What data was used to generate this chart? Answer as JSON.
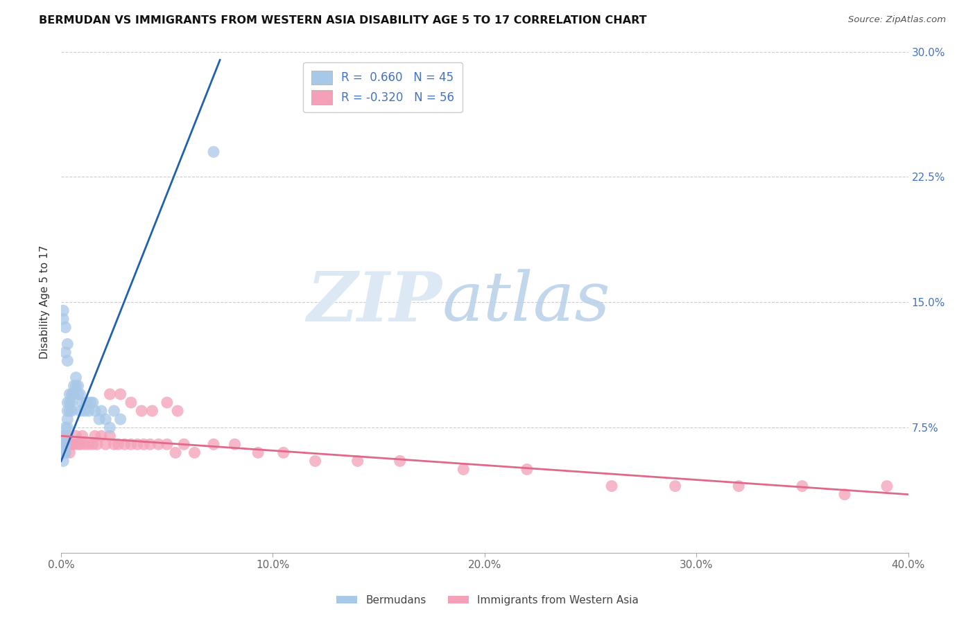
{
  "title": "BERMUDAN VS IMMIGRANTS FROM WESTERN ASIA DISABILITY AGE 5 TO 17 CORRELATION CHART",
  "source": "Source: ZipAtlas.com",
  "ylabel": "Disability Age 5 to 17",
  "xlim": [
    0.0,
    0.4
  ],
  "ylim": [
    0.0,
    0.3
  ],
  "xticks": [
    0.0,
    0.1,
    0.2,
    0.3,
    0.4
  ],
  "yticks": [
    0.0,
    0.075,
    0.15,
    0.225,
    0.3
  ],
  "xticklabels": [
    "0.0%",
    "10.0%",
    "20.0%",
    "30.0%",
    "40.0%"
  ],
  "yticklabels_right": [
    "",
    "7.5%",
    "15.0%",
    "22.5%",
    "30.0%"
  ],
  "blue_R": 0.66,
  "blue_N": 45,
  "pink_R": -0.32,
  "pink_N": 56,
  "blue_color": "#a8c8e8",
  "pink_color": "#f4a0b8",
  "trend_blue": "#2060b0",
  "trend_pink": "#e06888",
  "blue_x": [
    0.001,
    0.001,
    0.001,
    0.002,
    0.002,
    0.002,
    0.002,
    0.003,
    0.003,
    0.003,
    0.003,
    0.004,
    0.004,
    0.004,
    0.005,
    0.005,
    0.005,
    0.006,
    0.006,
    0.007,
    0.007,
    0.008,
    0.008,
    0.009,
    0.009,
    0.01,
    0.011,
    0.012,
    0.013,
    0.014,
    0.015,
    0.016,
    0.018,
    0.019,
    0.021,
    0.023,
    0.025,
    0.028,
    0.001,
    0.002,
    0.003,
    0.002,
    0.003,
    0.001,
    0.072
  ],
  "blue_y": [
    0.06,
    0.065,
    0.055,
    0.07,
    0.075,
    0.065,
    0.06,
    0.08,
    0.075,
    0.085,
    0.09,
    0.09,
    0.085,
    0.095,
    0.085,
    0.09,
    0.095,
    0.1,
    0.095,
    0.1,
    0.105,
    0.1,
    0.095,
    0.095,
    0.085,
    0.09,
    0.085,
    0.09,
    0.085,
    0.09,
    0.09,
    0.085,
    0.08,
    0.085,
    0.08,
    0.075,
    0.085,
    0.08,
    0.14,
    0.135,
    0.125,
    0.12,
    0.115,
    0.145,
    0.24
  ],
  "blue_trendline_x": [
    0.0,
    0.075
  ],
  "blue_trendline_y": [
    0.055,
    0.295
  ],
  "pink_x": [
    0.001,
    0.001,
    0.002,
    0.002,
    0.003,
    0.003,
    0.004,
    0.004,
    0.005,
    0.006,
    0.007,
    0.008,
    0.009,
    0.01,
    0.011,
    0.013,
    0.015,
    0.016,
    0.017,
    0.019,
    0.021,
    0.023,
    0.025,
    0.027,
    0.03,
    0.033,
    0.036,
    0.039,
    0.042,
    0.046,
    0.05,
    0.054,
    0.058,
    0.063,
    0.072,
    0.082,
    0.093,
    0.105,
    0.12,
    0.14,
    0.16,
    0.19,
    0.22,
    0.26,
    0.29,
    0.32,
    0.35,
    0.37,
    0.39,
    0.023,
    0.028,
    0.033,
    0.038,
    0.043,
    0.05,
    0.055
  ],
  "pink_y": [
    0.065,
    0.07,
    0.06,
    0.065,
    0.065,
    0.07,
    0.065,
    0.06,
    0.065,
    0.065,
    0.07,
    0.065,
    0.065,
    0.07,
    0.065,
    0.065,
    0.065,
    0.07,
    0.065,
    0.07,
    0.065,
    0.07,
    0.065,
    0.065,
    0.065,
    0.065,
    0.065,
    0.065,
    0.065,
    0.065,
    0.065,
    0.06,
    0.065,
    0.06,
    0.065,
    0.065,
    0.06,
    0.06,
    0.055,
    0.055,
    0.055,
    0.05,
    0.05,
    0.04,
    0.04,
    0.04,
    0.04,
    0.035,
    0.04,
    0.095,
    0.095,
    0.09,
    0.085,
    0.085,
    0.09,
    0.085
  ],
  "pink_trendline_x": [
    0.0,
    0.4
  ],
  "pink_trendline_y": [
    0.07,
    0.035
  ]
}
